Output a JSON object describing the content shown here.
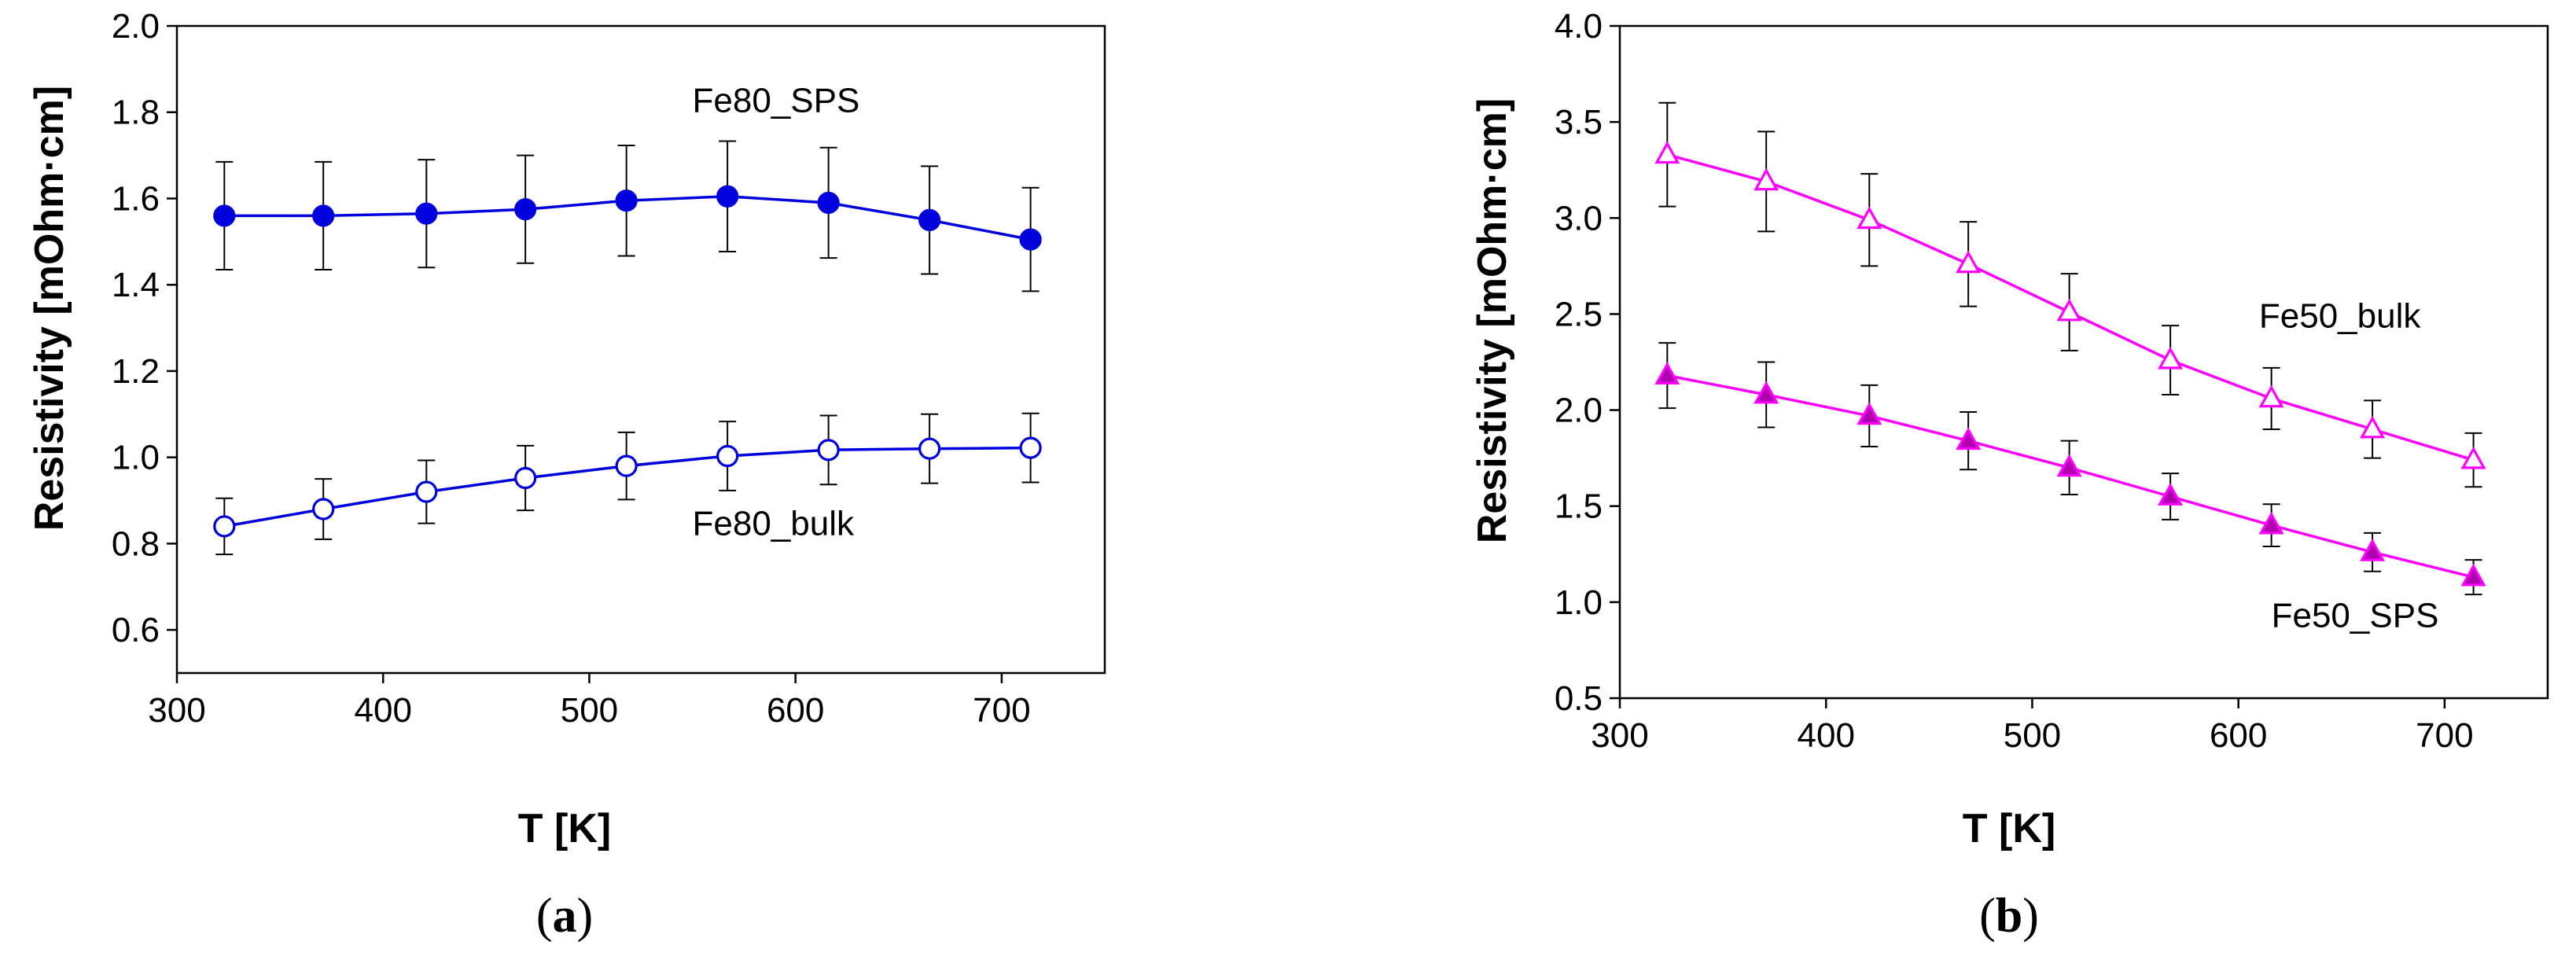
{
  "chart_data": [
    {
      "type": "line",
      "panel_label": "a",
      "xlabel": "T [K]",
      "ylabel": "Resistivity [mOhm·cm]",
      "xlim": [
        300,
        750
      ],
      "ylim": [
        0.5,
        2.0
      ],
      "xticks": [
        300,
        400,
        500,
        600,
        700
      ],
      "yticks": [
        0.6,
        0.8,
        1.0,
        1.2,
        1.4,
        1.6,
        1.8,
        2.0
      ],
      "ytick_labels": [
        "0.6",
        "0.8",
        "1.0",
        "1.2",
        "1.4",
        "1.6",
        "1.8",
        "2.0"
      ],
      "grid": false,
      "series": [
        {
          "name": "Fe80_SPS",
          "color": "#0000dd",
          "marker": "circle",
          "filled": true,
          "label_anchor": [
            550,
            1.8
          ],
          "x": [
            323,
            371,
            421,
            469,
            518,
            567,
            616,
            665,
            714
          ],
          "values": [
            1.56,
            1.56,
            1.565,
            1.575,
            1.595,
            1.605,
            1.59,
            1.55,
            1.505
          ],
          "errors": [
            0.125,
            0.125,
            0.125,
            0.125,
            0.128,
            0.128,
            0.128,
            0.125,
            0.12
          ]
        },
        {
          "name": "Fe80_bulk",
          "color": "#0000dd",
          "marker": "circle",
          "filled": false,
          "label_anchor": [
            550,
            0.82
          ],
          "x": [
            323,
            371,
            421,
            469,
            518,
            567,
            616,
            665,
            714
          ],
          "values": [
            0.84,
            0.88,
            0.92,
            0.952,
            0.98,
            1.003,
            1.017,
            1.02,
            1.022
          ],
          "errors": [
            0.065,
            0.07,
            0.073,
            0.075,
            0.078,
            0.08,
            0.08,
            0.08,
            0.08
          ]
        }
      ]
    },
    {
      "type": "line",
      "panel_label": "b",
      "xlabel": "T [K]",
      "ylabel": "Resistivity [mOhm·cm]",
      "xlim": [
        300,
        750
      ],
      "ylim": [
        0.5,
        4.0
      ],
      "xticks": [
        300,
        400,
        500,
        600,
        700
      ],
      "yticks": [
        0.5,
        1.0,
        1.5,
        2.0,
        2.5,
        3.0,
        3.5,
        4.0
      ],
      "ytick_labels": [
        "0.5",
        "1.0",
        "1.5",
        "2.0",
        "2.5",
        "3.0",
        "3.5",
        "4.0"
      ],
      "grid": false,
      "series": [
        {
          "name": "Fe50_bulk",
          "color": "#ff00ff",
          "marker": "triangle",
          "filled": false,
          "label_anchor": [
            610,
            2.43
          ],
          "x": [
            323,
            371,
            421,
            469,
            518,
            567,
            616,
            665,
            714
          ],
          "values": [
            3.33,
            3.19,
            2.99,
            2.76,
            2.51,
            2.26,
            2.06,
            1.9,
            1.74
          ],
          "errors": [
            0.27,
            0.26,
            0.24,
            0.22,
            0.2,
            0.18,
            0.16,
            0.15,
            0.14
          ]
        },
        {
          "name": "Fe50_SPS",
          "color": "#ff00ff",
          "fill": "#b000b0",
          "marker": "triangle",
          "filled": true,
          "label_anchor": [
            616,
            0.87
          ],
          "x": [
            323,
            371,
            421,
            469,
            518,
            567,
            616,
            665,
            714
          ],
          "values": [
            2.18,
            2.08,
            1.97,
            1.84,
            1.7,
            1.55,
            1.4,
            1.26,
            1.13
          ],
          "errors": [
            0.17,
            0.17,
            0.16,
            0.15,
            0.14,
            0.12,
            0.11,
            0.1,
            0.09
          ]
        }
      ]
    }
  ]
}
